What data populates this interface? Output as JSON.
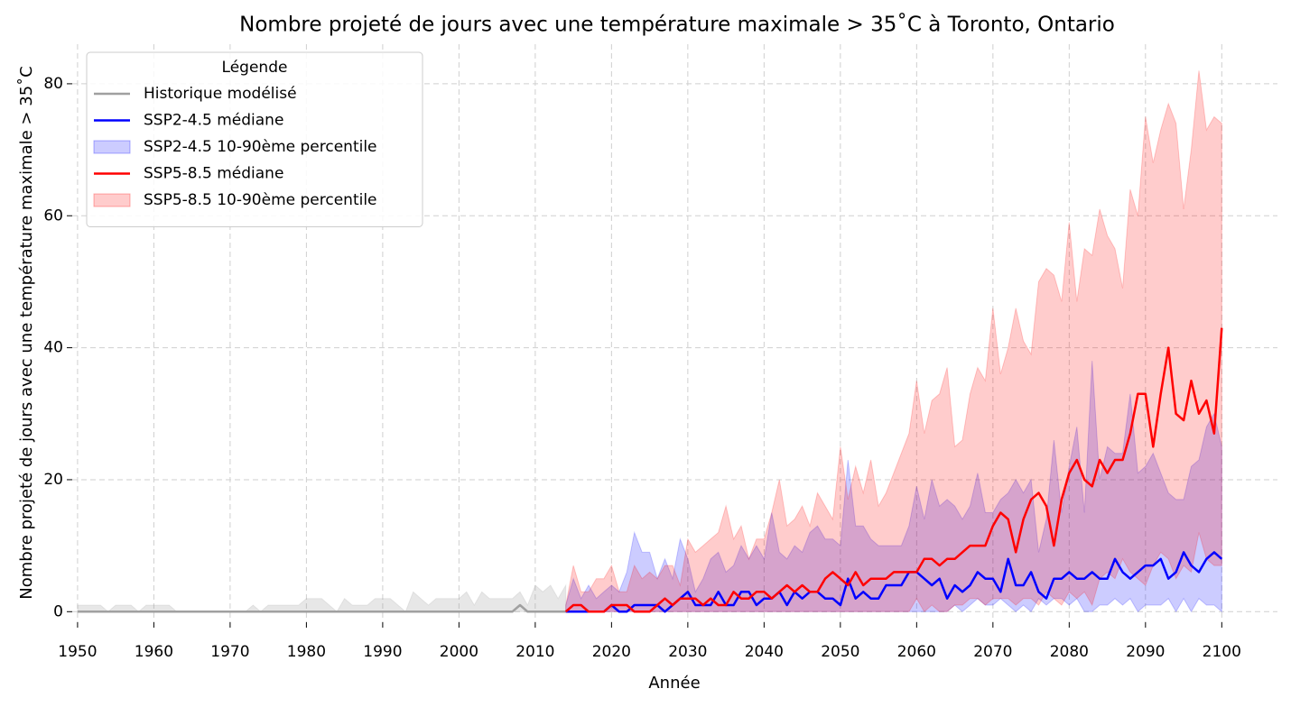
{
  "chart_data": {
    "type": "line",
    "title": "Nombre projeté de jours avec une température maximale > 35˚C à Toronto, Ontario",
    "x_label": "Année",
    "y_label": "Nombre projeté de jours avec une température maximale > 35˚C",
    "legend_title": "Légende",
    "legend": "upper left",
    "grid": true,
    "xlim": [
      1949.3,
      2107.3
    ],
    "ylim": [
      -1.6,
      86
    ],
    "xticks": [
      1950,
      1960,
      1970,
      1980,
      1990,
      2000,
      2010,
      2020,
      2030,
      2040,
      2050,
      2060,
      2070,
      2080,
      2090,
      2100
    ],
    "yticks": [
      0,
      20,
      40,
      60,
      80
    ],
    "series": [
      {
        "kind": "line",
        "name": "Historique modélisé",
        "color": "#a0a0a0",
        "x": [
          1950,
          1951,
          1952,
          1953,
          1954,
          1955,
          1956,
          1957,
          1958,
          1959,
          1960,
          1961,
          1962,
          1963,
          1964,
          1965,
          1966,
          1967,
          1968,
          1969,
          1970,
          1971,
          1972,
          1973,
          1974,
          1975,
          1976,
          1977,
          1978,
          1979,
          1980,
          1981,
          1982,
          1983,
          1984,
          1985,
          1986,
          1987,
          1988,
          1989,
          1990,
          1991,
          1992,
          1993,
          1994,
          1995,
          1996,
          1997,
          1998,
          1999,
          2000,
          2001,
          2002,
          2003,
          2004,
          2005,
          2006,
          2007,
          2008,
          2009,
          2010,
          2011,
          2012,
          2013,
          2014
        ],
        "values": [
          0,
          0,
          0,
          0,
          0,
          0,
          0,
          0,
          0,
          0,
          0,
          0,
          0,
          0,
          0,
          0,
          0,
          0,
          0,
          0,
          0,
          0,
          0,
          0,
          0,
          0,
          0,
          0,
          0,
          0,
          0,
          0,
          0,
          0,
          0,
          0,
          0,
          0,
          0,
          0,
          0,
          0,
          0,
          0,
          0,
          0,
          0,
          0,
          0,
          0,
          0,
          0,
          0,
          0,
          0,
          0,
          0,
          0,
          1,
          0,
          0,
          0,
          0,
          0,
          0
        ]
      },
      {
        "kind": "line",
        "name": "SSP2-4.5 médiane",
        "color": "#0000ff",
        "x": [
          2014,
          2015,
          2016,
          2017,
          2018,
          2019,
          2020,
          2021,
          2022,
          2023,
          2024,
          2025,
          2026,
          2027,
          2028,
          2029,
          2030,
          2031,
          2032,
          2033,
          2034,
          2035,
          2036,
          2037,
          2038,
          2039,
          2040,
          2041,
          2042,
          2043,
          2044,
          2045,
          2046,
          2047,
          2048,
          2049,
          2050,
          2051,
          2052,
          2053,
          2054,
          2055,
          2056,
          2057,
          2058,
          2059,
          2060,
          2061,
          2062,
          2063,
          2064,
          2065,
          2066,
          2067,
          2068,
          2069,
          2070,
          2071,
          2072,
          2073,
          2074,
          2075,
          2076,
          2077,
          2078,
          2079,
          2080,
          2081,
          2082,
          2083,
          2084,
          2085,
          2086,
          2087,
          2088,
          2089,
          2090,
          2091,
          2092,
          2093,
          2094,
          2095,
          2096,
          2097,
          2098,
          2099,
          2100
        ],
        "values": [
          0,
          0,
          0,
          0,
          0,
          0,
          1,
          0,
          0,
          1,
          1,
          1,
          1,
          0,
          1,
          2,
          3,
          1,
          1,
          1,
          3,
          1,
          1,
          3,
          3,
          1,
          2,
          2,
          3,
          1,
          3,
          2,
          3,
          3,
          2,
          2,
          1,
          5,
          2,
          3,
          2,
          2,
          4,
          4,
          4,
          6,
          6,
          5,
          4,
          5,
          2,
          4,
          3,
          4,
          6,
          5,
          5,
          3,
          8,
          4,
          4,
          6,
          3,
          2,
          5,
          5,
          6,
          5,
          5,
          6,
          5,
          5,
          8,
          6,
          5,
          6,
          7,
          7,
          8,
          5,
          6,
          9,
          7,
          6,
          8,
          9,
          8
        ]
      },
      {
        "kind": "band",
        "name": "SSP2-4.5 10-90ème percentile",
        "color": "#0000ff",
        "x": [
          2014,
          2015,
          2016,
          2017,
          2018,
          2019,
          2020,
          2021,
          2022,
          2023,
          2024,
          2025,
          2026,
          2027,
          2028,
          2029,
          2030,
          2031,
          2032,
          2033,
          2034,
          2035,
          2036,
          2037,
          2038,
          2039,
          2040,
          2041,
          2042,
          2043,
          2044,
          2045,
          2046,
          2047,
          2048,
          2049,
          2050,
          2051,
          2052,
          2053,
          2054,
          2055,
          2056,
          2057,
          2058,
          2059,
          2060,
          2061,
          2062,
          2063,
          2064,
          2065,
          2066,
          2067,
          2068,
          2069,
          2070,
          2071,
          2072,
          2073,
          2074,
          2075,
          2076,
          2077,
          2078,
          2079,
          2080,
          2081,
          2082,
          2083,
          2084,
          2085,
          2086,
          2087,
          2088,
          2089,
          2090,
          2091,
          2092,
          2093,
          2094,
          2095,
          2096,
          2097,
          2098,
          2099,
          2100
        ],
        "low": [
          0,
          0,
          0,
          0,
          0,
          0,
          0,
          0,
          0,
          0,
          0,
          0,
          0,
          0,
          0,
          0,
          0,
          0,
          0,
          0,
          0,
          0,
          0,
          0,
          0,
          0,
          0,
          0,
          0,
          0,
          0,
          0,
          0,
          0,
          0,
          0,
          0,
          0,
          0,
          0,
          0,
          0,
          0,
          0,
          0,
          0,
          0,
          0,
          0,
          0,
          0,
          1,
          0,
          1,
          2,
          1,
          1,
          2,
          1,
          0,
          1,
          0,
          2,
          1,
          2,
          2,
          1,
          2,
          0,
          0,
          1,
          1,
          2,
          1,
          2,
          0,
          1,
          1,
          1,
          2,
          0,
          2,
          0,
          2,
          1,
          1,
          0
        ],
        "high": [
          1,
          5,
          2,
          4,
          2,
          3,
          4,
          3,
          6,
          12,
          9,
          9,
          5,
          8,
          5,
          11,
          8,
          3,
          5,
          8,
          9,
          6,
          7,
          10,
          8,
          10,
          8,
          15,
          9,
          8,
          10,
          9,
          12,
          13,
          11,
          11,
          10,
          23,
          13,
          13,
          11,
          10,
          10,
          10,
          10,
          13,
          19,
          14,
          20,
          16,
          17,
          16,
          14,
          16,
          21,
          15,
          15,
          17,
          18,
          20,
          18,
          20,
          9,
          14,
          26,
          15,
          22,
          28,
          15,
          38,
          20,
          25,
          24,
          24,
          33,
          21,
          22,
          24,
          21,
          18,
          17,
          17,
          22,
          23,
          28,
          30,
          25
        ]
      },
      {
        "kind": "line",
        "name": "SSP5-8.5 médiane",
        "color": "#ff0000",
        "x": [
          2014,
          2015,
          2016,
          2017,
          2018,
          2019,
          2020,
          2021,
          2022,
          2023,
          2024,
          2025,
          2026,
          2027,
          2028,
          2029,
          2030,
          2031,
          2032,
          2033,
          2034,
          2035,
          2036,
          2037,
          2038,
          2039,
          2040,
          2041,
          2042,
          2043,
          2044,
          2045,
          2046,
          2047,
          2048,
          2049,
          2050,
          2051,
          2052,
          2053,
          2054,
          2055,
          2056,
          2057,
          2058,
          2059,
          2060,
          2061,
          2062,
          2063,
          2064,
          2065,
          2066,
          2067,
          2068,
          2069,
          2070,
          2071,
          2072,
          2073,
          2074,
          2075,
          2076,
          2077,
          2078,
          2079,
          2080,
          2081,
          2082,
          2083,
          2084,
          2085,
          2086,
          2087,
          2088,
          2089,
          2090,
          2091,
          2092,
          2093,
          2094,
          2095,
          2096,
          2097,
          2098,
          2099,
          2100
        ],
        "values": [
          0,
          1,
          1,
          0,
          0,
          0,
          1,
          1,
          1,
          0,
          0,
          0,
          1,
          2,
          1,
          2,
          2,
          2,
          1,
          2,
          1,
          1,
          3,
          2,
          2,
          3,
          3,
          2,
          3,
          4,
          3,
          4,
          3,
          3,
          5,
          6,
          5,
          4,
          6,
          4,
          5,
          5,
          5,
          6,
          6,
          6,
          6,
          8,
          8,
          7,
          8,
          8,
          9,
          10,
          10,
          10,
          13,
          15,
          14,
          9,
          14,
          17,
          18,
          16,
          10,
          17,
          21,
          23,
          20,
          19,
          23,
          21,
          23,
          23,
          27,
          33,
          33,
          25,
          33,
          40,
          30,
          29,
          35,
          30,
          32,
          27,
          43
        ]
      },
      {
        "kind": "band",
        "name": "SSP5-8.5 10-90ème percentile",
        "color": "#ff0000",
        "x": [
          2014,
          2015,
          2016,
          2017,
          2018,
          2019,
          2020,
          2021,
          2022,
          2023,
          2024,
          2025,
          2026,
          2027,
          2028,
          2029,
          2030,
          2031,
          2032,
          2033,
          2034,
          2035,
          2036,
          2037,
          2038,
          2039,
          2040,
          2041,
          2042,
          2043,
          2044,
          2045,
          2046,
          2047,
          2048,
          2049,
          2050,
          2051,
          2052,
          2053,
          2054,
          2055,
          2056,
          2057,
          2058,
          2059,
          2060,
          2061,
          2062,
          2063,
          2064,
          2065,
          2066,
          2067,
          2068,
          2069,
          2070,
          2071,
          2072,
          2073,
          2074,
          2075,
          2076,
          2077,
          2078,
          2079,
          2080,
          2081,
          2082,
          2083,
          2084,
          2085,
          2086,
          2087,
          2088,
          2089,
          2090,
          2091,
          2092,
          2093,
          2094,
          2095,
          2096,
          2097,
          2098,
          2099,
          2100
        ],
        "low": [
          0,
          0,
          0,
          0,
          0,
          0,
          0,
          0,
          0,
          0,
          0,
          0,
          0,
          0,
          0,
          0,
          0,
          0,
          0,
          0,
          0,
          0,
          0,
          0,
          0,
          0,
          0,
          0,
          0,
          0,
          0,
          0,
          0,
          0,
          0,
          0,
          0,
          0,
          0,
          0,
          0,
          0,
          0,
          0,
          0,
          0,
          2,
          0,
          1,
          0,
          0,
          1,
          1,
          2,
          2,
          1,
          2,
          2,
          2,
          1,
          2,
          2,
          1,
          3,
          2,
          1,
          3,
          2,
          3,
          1,
          5,
          6,
          5,
          8,
          6,
          5,
          4,
          7,
          9,
          8,
          5,
          7,
          6,
          12,
          8,
          7,
          7
        ],
        "high": [
          1,
          7,
          3,
          3,
          5,
          5,
          7,
          3,
          3,
          7,
          5,
          6,
          5,
          7,
          7,
          4,
          11,
          9,
          10,
          11,
          12,
          16,
          11,
          13,
          8,
          11,
          11,
          15,
          20,
          13,
          14,
          16,
          13,
          18,
          16,
          14,
          25,
          17,
          22,
          18,
          23,
          16,
          18,
          21,
          24,
          27,
          35,
          27,
          32,
          33,
          37,
          25,
          26,
          33,
          37,
          35,
          46,
          36,
          40,
          46,
          41,
          39,
          50,
          52,
          51,
          47,
          59,
          47,
          55,
          54,
          61,
          57,
          55,
          49,
          64,
          60,
          75,
          68,
          73,
          77,
          74,
          61,
          70,
          82,
          73,
          75,
          74
        ]
      },
      {
        "kind": "band",
        "color": "#a0a0a0",
        "x": [
          1950,
          1951,
          1952,
          1953,
          1954,
          1955,
          1956,
          1957,
          1958,
          1959,
          1960,
          1961,
          1962,
          1963,
          1964,
          1965,
          1966,
          1967,
          1968,
          1969,
          1970,
          1971,
          1972,
          1973,
          1974,
          1975,
          1976,
          1977,
          1978,
          1979,
          1980,
          1981,
          1982,
          1983,
          1984,
          1985,
          1986,
          1987,
          1988,
          1989,
          1990,
          1991,
          1992,
          1993,
          1994,
          1995,
          1996,
          1997,
          1998,
          1999,
          2000,
          2001,
          2002,
          2003,
          2004,
          2005,
          2006,
          2007,
          2008,
          2009,
          2010,
          2011,
          2012,
          2013,
          2014
        ],
        "low": [
          0,
          0,
          0,
          0,
          0,
          0,
          0,
          0,
          0,
          0,
          0,
          0,
          0,
          0,
          0,
          0,
          0,
          0,
          0,
          0,
          0,
          0,
          0,
          0,
          0,
          0,
          0,
          0,
          0,
          0,
          0,
          0,
          0,
          0,
          0,
          0,
          0,
          0,
          0,
          0,
          0,
          0,
          0,
          0,
          0,
          0,
          0,
          0,
          0,
          0,
          0,
          0,
          0,
          0,
          0,
          0,
          0,
          0,
          0,
          0,
          0,
          0,
          0,
          0,
          0
        ],
        "high": [
          1,
          1,
          1,
          1,
          0,
          1,
          1,
          1,
          0,
          1,
          1,
          1,
          1,
          0,
          0,
          0,
          0,
          0,
          0,
          0,
          0,
          0,
          0,
          1,
          0,
          1,
          1,
          1,
          1,
          1,
          2,
          2,
          2,
          1,
          0,
          2,
          1,
          1,
          1,
          2,
          2,
          2,
          1,
          0,
          3,
          2,
          1,
          2,
          2,
          2,
          2,
          3,
          1,
          3,
          2,
          2,
          2,
          2,
          3,
          1,
          4,
          3,
          4,
          2,
          4
        ]
      }
    ]
  }
}
